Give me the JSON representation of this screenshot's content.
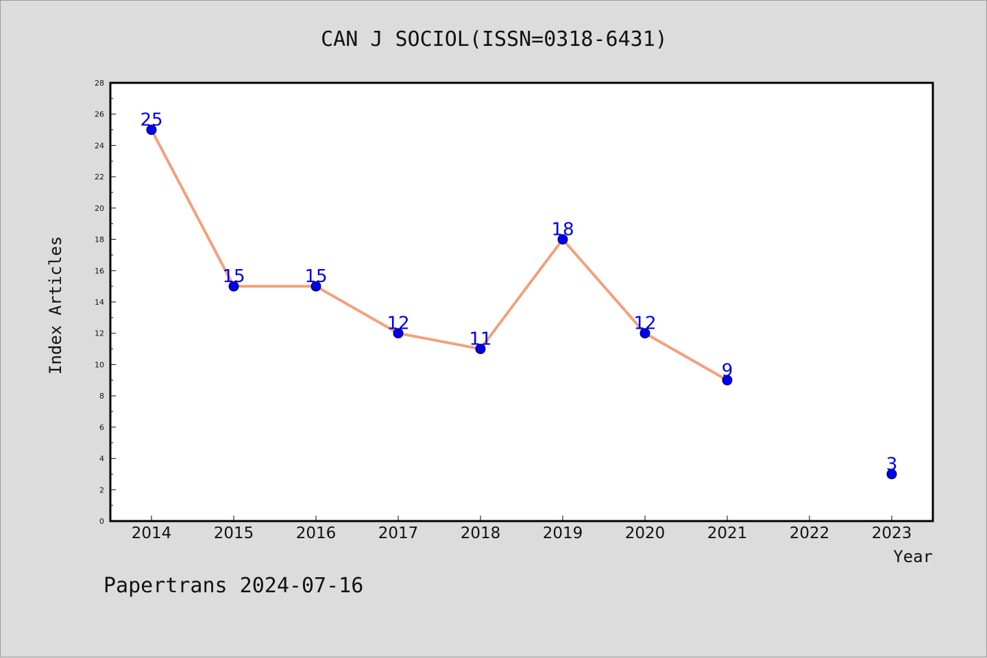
{
  "chart_data": {
    "type": "line",
    "title": "CAN J SOCIOL(ISSN=0318-6431)",
    "xlabel": "Year",
    "ylabel": "Index Articles",
    "categories": [
      "2014",
      "2015",
      "2016",
      "2017",
      "2018",
      "2019",
      "2020",
      "2021",
      "2022",
      "2023"
    ],
    "series": [
      {
        "values": [
          25,
          15,
          15,
          12,
          11,
          18,
          12,
          9,
          null,
          3
        ],
        "line_color": "#f4a07a",
        "marker_color": "#0000ee",
        "label_color": "#0000ee"
      }
    ],
    "yticks": [
      0,
      2,
      4,
      6,
      8,
      10,
      12,
      14,
      16,
      18,
      20,
      22,
      24,
      26,
      28
    ],
    "ylim": [
      0,
      28
    ],
    "grid": false
  },
  "footer": {
    "watermark": "Papertrans 2024-07-16"
  }
}
